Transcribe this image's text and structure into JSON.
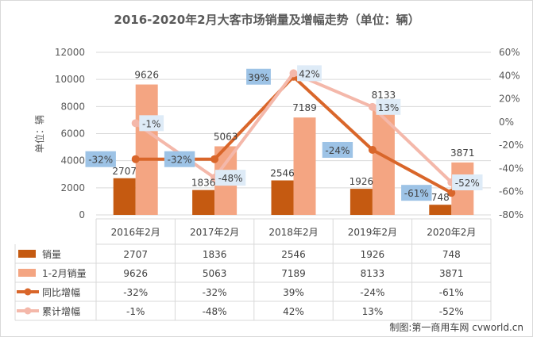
{
  "chart_data": {
    "type": "bar",
    "title": "2016-2020年2月大客市场销量及增幅走势（单位：辆）",
    "ylabel": "单位：辆",
    "categories": [
      "2016年2月",
      "2017年2月",
      "2018年2月",
      "2019年2月",
      "2020年2月"
    ],
    "ylim": [
      0,
      12000
    ],
    "yticks": [
      "0",
      "2000",
      "4000",
      "6000",
      "8000",
      "10000",
      "12000"
    ],
    "y2lim": [
      -80,
      60
    ],
    "y2ticks": [
      "-80%",
      "-60%",
      "-40%",
      "-20%",
      "0%",
      "20%",
      "40%",
      "60%"
    ],
    "series": [
      {
        "name": "销量",
        "kind": "bar",
        "color": "#c55a11",
        "values": [
          2707,
          1836,
          2546,
          1926,
          748
        ],
        "labels": [
          "2707",
          "1836",
          "2546",
          "1926",
          "748"
        ]
      },
      {
        "name": "1-2月销量",
        "kind": "bar",
        "color": "#f4a582",
        "values": [
          9626,
          5063,
          7189,
          8133,
          3871
        ],
        "labels": [
          "9626",
          "5063",
          "7189",
          "8133",
          "3871"
        ]
      },
      {
        "name": "同比增幅",
        "kind": "line",
        "axis": "right",
        "color": "#d9662a",
        "values": [
          -32,
          -32,
          39,
          -24,
          -61
        ],
        "labels": [
          "-32%",
          "-32%",
          "39%",
          "-24%",
          "-61%"
        ]
      },
      {
        "name": "累计增幅",
        "kind": "line",
        "axis": "right",
        "color": "#f4b8aa",
        "values": [
          -1,
          -48,
          42,
          13,
          -52
        ],
        "labels": [
          "-1%",
          "-48%",
          "42%",
          "13%",
          "-52%"
        ]
      }
    ],
    "credit": "制图:第一商用车网 cvworld.cn"
  }
}
